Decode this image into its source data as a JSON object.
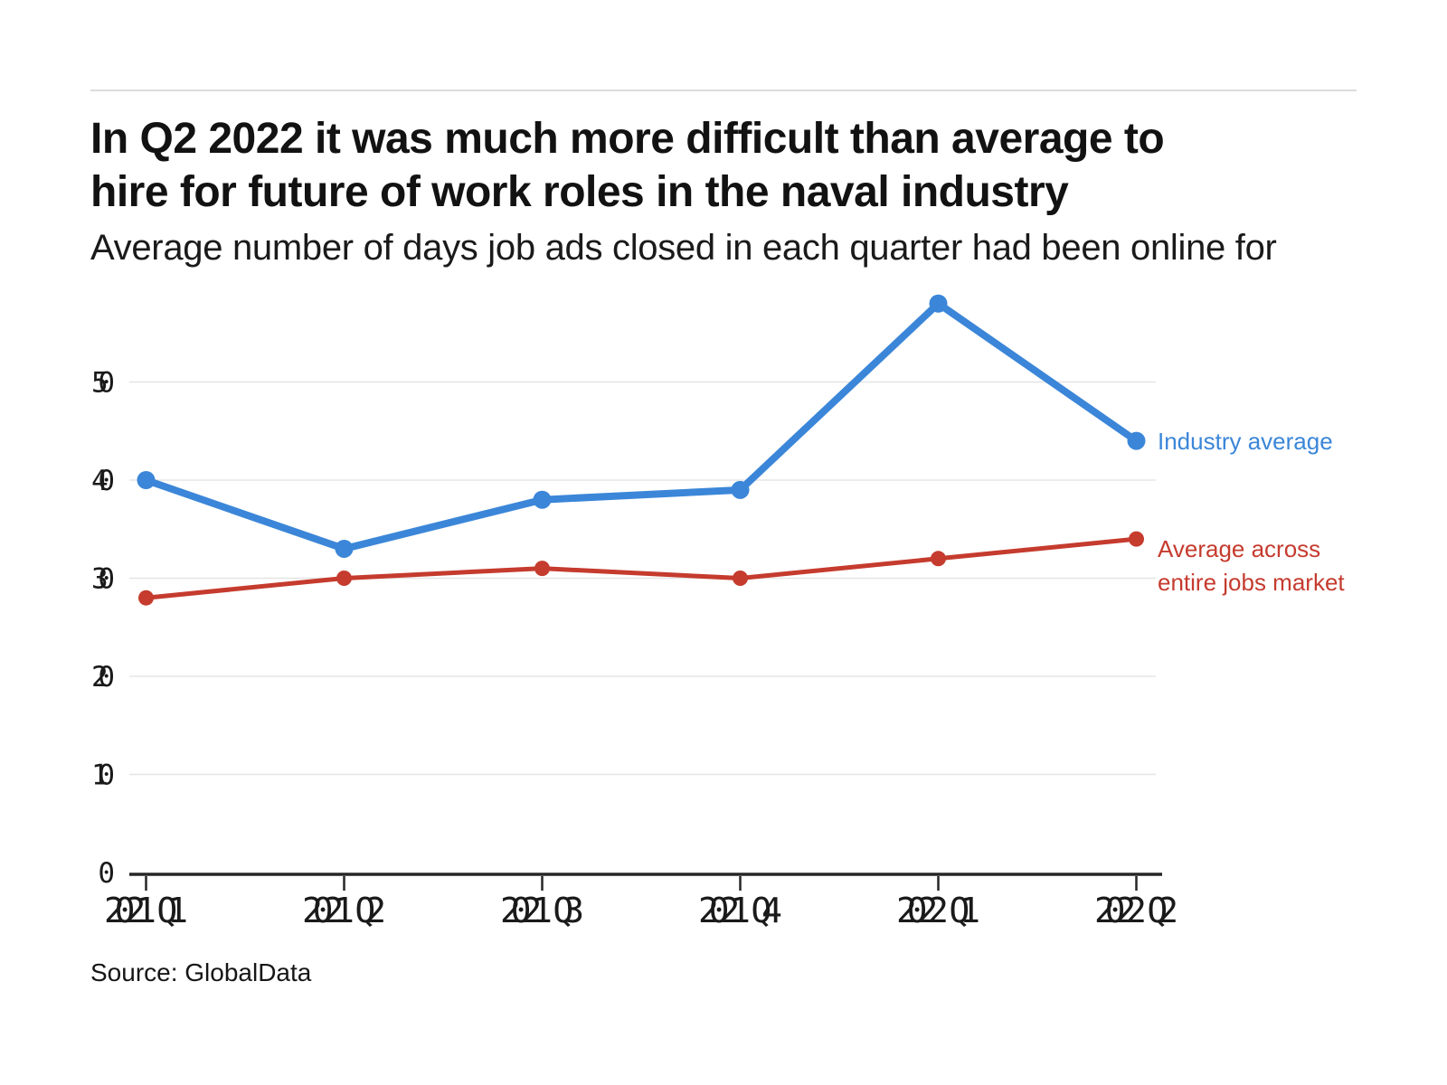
{
  "header": {
    "title_line1": "In Q2 2022 it was much more difficult than average to",
    "title_line2": "hire for future of work roles in the naval industry",
    "subtitle": "Average number of days job ads closed in each quarter had been online for"
  },
  "footer": {
    "source": "Source: GlobalData"
  },
  "colors": {
    "industry_average": "#3b86d8",
    "jobs_market_average": "#c53b2e",
    "gridline": "#e5e5e5",
    "axis": "#262626",
    "tick_label": "#1a1a1a",
    "title_text": "#121212",
    "top_rule": "#dcdcdc"
  },
  "chart_data": {
    "type": "line",
    "title": "In Q2 2022 it was much more difficult than average to hire for future of work roles in the naval industry",
    "subtitle": "Average number of days job ads closed in each quarter had been online for",
    "source": "Source: GlobalData",
    "categories": [
      "2021 Q1",
      "2021 Q2",
      "2021 Q3",
      "2021 Q4",
      "2022 Q1",
      "2022 Q2"
    ],
    "series": [
      {
        "name": "Industry average",
        "color": "#3b86d8",
        "values": [
          40,
          33,
          38,
          39,
          58,
          44
        ],
        "legend_lines": [
          "Industry average"
        ]
      },
      {
        "name": "Average across entire jobs market",
        "color": "#c53b2e",
        "values": [
          28,
          30,
          31,
          30,
          32,
          34
        ],
        "legend_lines": [
          "Average across",
          "entire jobs market"
        ]
      }
    ],
    "xlabel": "",
    "ylabel": "",
    "yticks": [
      0,
      10,
      20,
      30,
      40,
      50
    ],
    "ylim": [
      0,
      60
    ],
    "grid": true,
    "legend_position": "right-of-line-ends"
  }
}
